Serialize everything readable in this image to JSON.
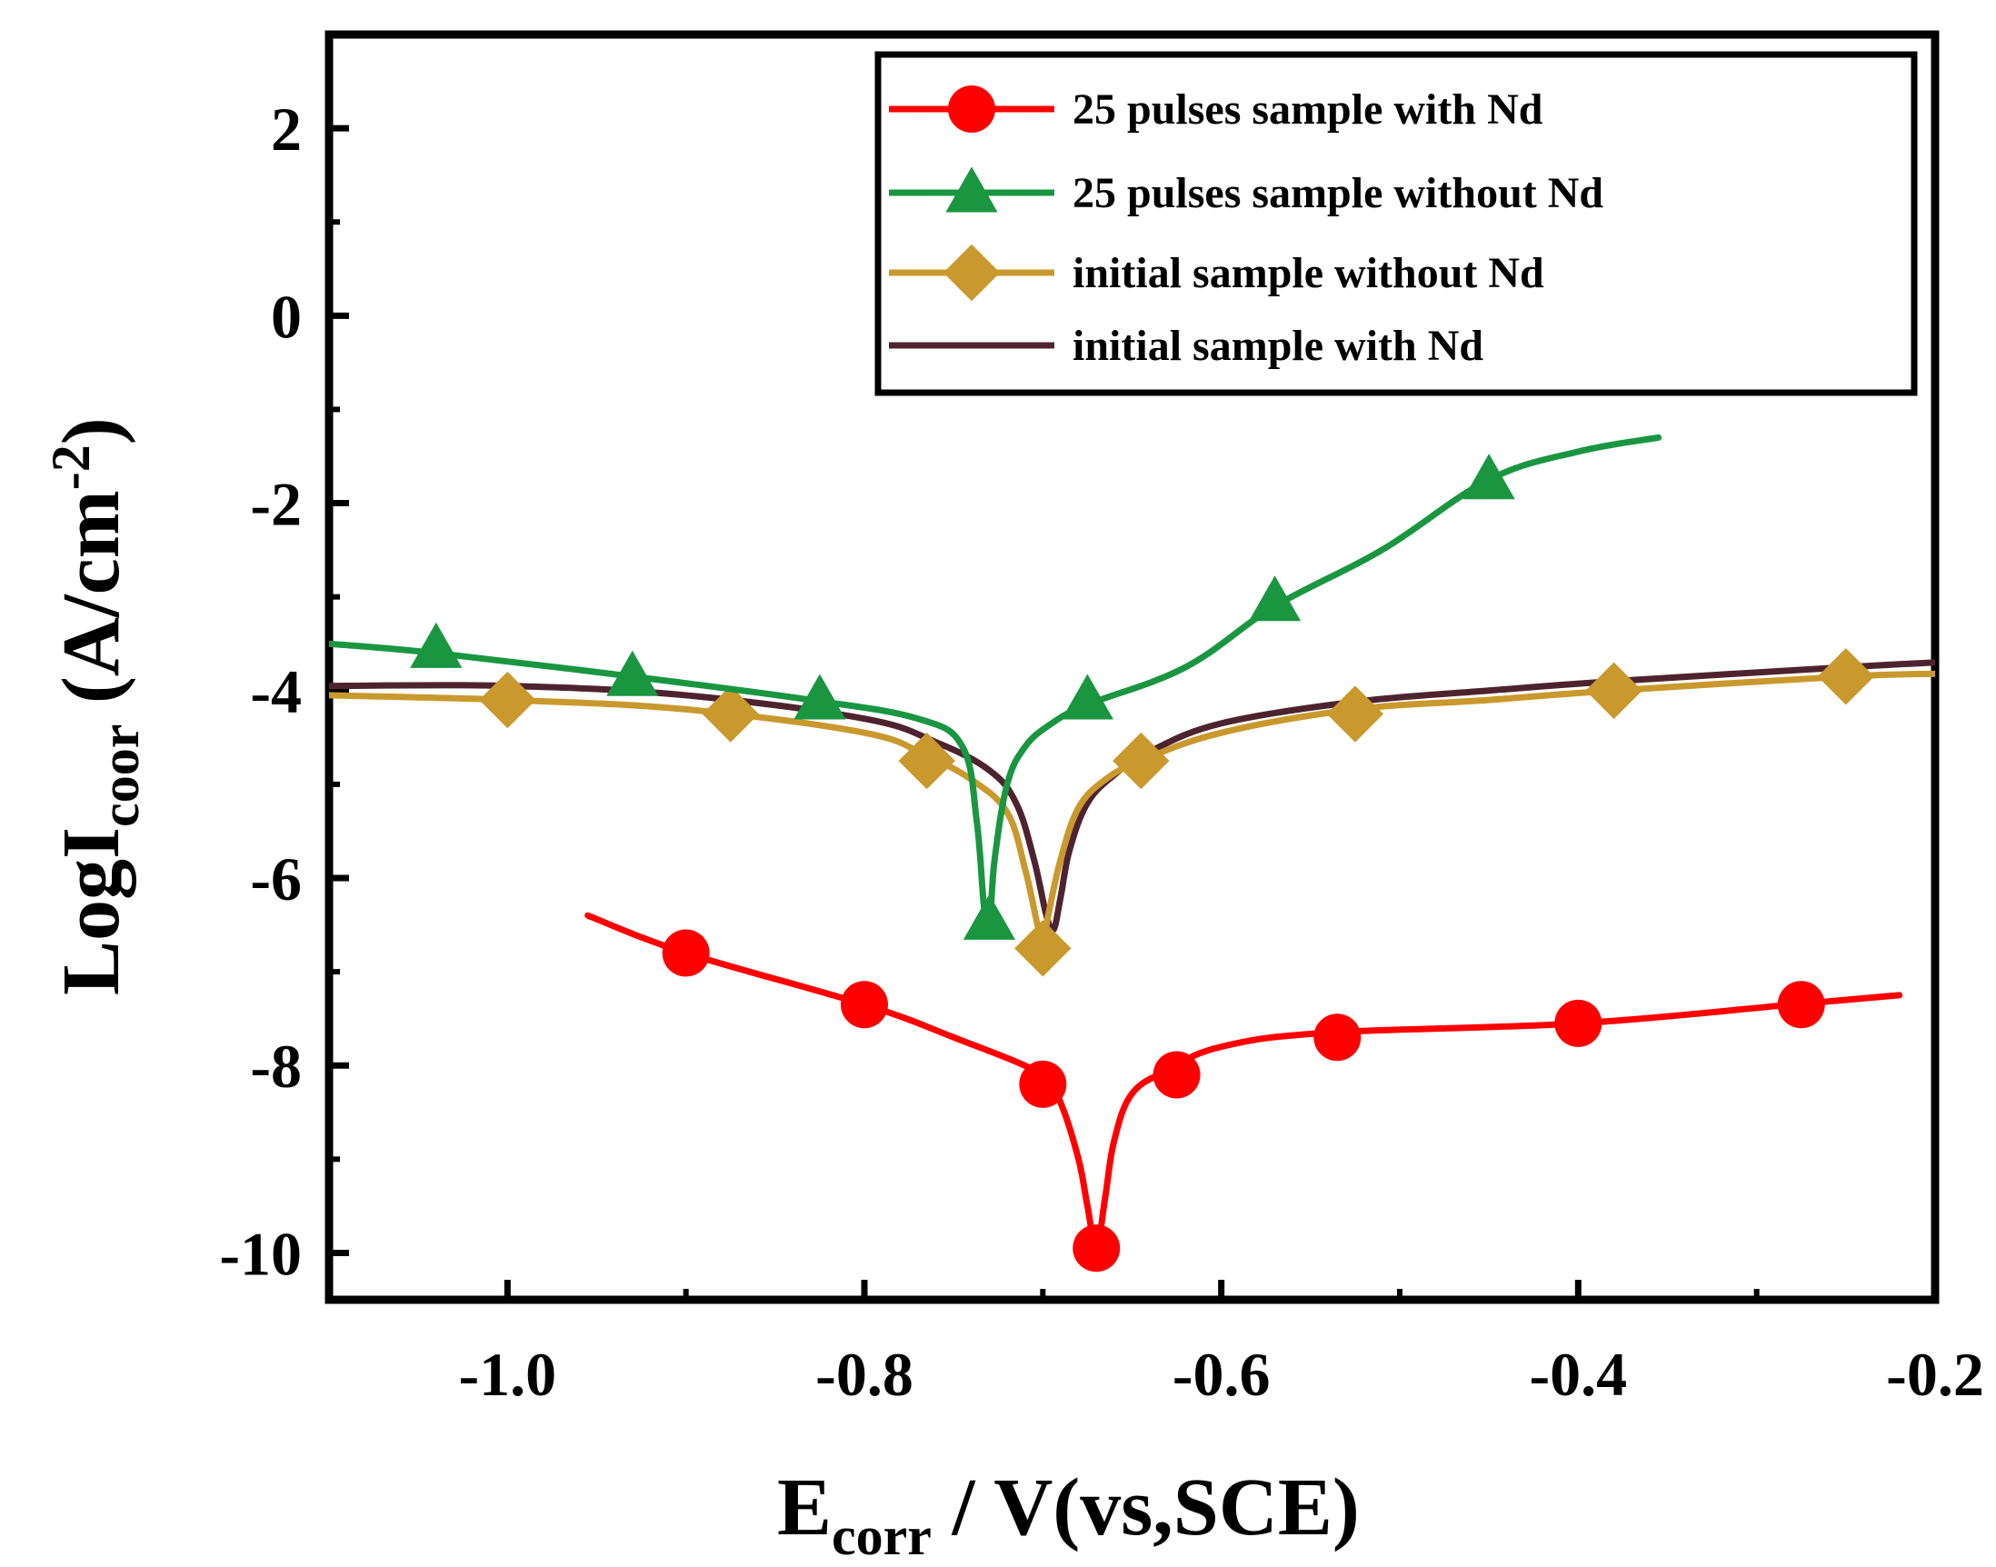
{
  "chart_data": {
    "type": "line",
    "xlabel": {
      "main": "E",
      "sub": "corr",
      "rest": " / V(vs,SCE)"
    },
    "ylabel": {
      "main": "LogI",
      "sub": "coor",
      "rest": " (A/cm",
      "sup": "-2",
      "end": ")"
    },
    "xlim": [
      -1.1,
      -0.2
    ],
    "ylim": [
      -10.5,
      3.0
    ],
    "xticks": [
      -1.0,
      -0.8,
      -0.6,
      -0.4,
      -0.2
    ],
    "xtick_labels": [
      "-1.0",
      "-0.8",
      "-0.6",
      "-0.4",
      "-0.2"
    ],
    "yticks": [
      2,
      0,
      -2,
      -4,
      -6,
      -8,
      -10
    ],
    "ytick_labels": [
      "2",
      "0",
      "-2",
      "-4",
      "-6",
      "-8",
      "-10"
    ],
    "legend_position": "top-right",
    "series": [
      {
        "name": "25 pulses sample with Nd",
        "color": "#ff0000",
        "marker": "circle",
        "x": [
          -0.955,
          -0.9,
          -0.8,
          -0.75,
          -0.7,
          -0.69,
          -0.68,
          -0.675,
          -0.67,
          -0.665,
          -0.66,
          -0.65,
          -0.63,
          -0.6,
          -0.54,
          -0.4,
          -0.28,
          -0.22
        ],
        "y": [
          -6.4,
          -6.8,
          -7.35,
          -7.7,
          -8.1,
          -8.4,
          -9.0,
          -9.5,
          -9.95,
          -9.4,
          -8.8,
          -8.3,
          -8.05,
          -7.8,
          -7.65,
          -7.55,
          -7.35,
          -7.25
        ],
        "marker_x": [
          -0.9,
          -0.8,
          -0.7,
          -0.67,
          -0.625,
          -0.535,
          -0.4,
          -0.275
        ],
        "marker_y": [
          -6.8,
          -7.35,
          -8.2,
          -9.95,
          -8.1,
          -7.7,
          -7.55,
          -7.35
        ]
      },
      {
        "name": "25 pulses sample without Nd",
        "color": "#1a9641",
        "marker": "triangle",
        "x": [
          -1.1,
          -1.04,
          -0.93,
          -0.83,
          -0.77,
          -0.745,
          -0.737,
          -0.733,
          -0.73,
          -0.727,
          -0.72,
          -0.71,
          -0.695,
          -0.675,
          -0.62,
          -0.57,
          -0.51,
          -0.45,
          -0.4,
          -0.355
        ],
        "y": [
          -3.5,
          -3.6,
          -3.85,
          -4.1,
          -4.3,
          -4.6,
          -5.4,
          -6.3,
          -6.5,
          -5.8,
          -5.0,
          -4.6,
          -4.35,
          -4.15,
          -3.75,
          -3.1,
          -2.5,
          -1.75,
          -1.45,
          -1.3
        ],
        "marker_x": [
          -1.04,
          -0.93,
          -0.825,
          -0.73,
          -0.675,
          -0.57,
          -0.45
        ],
        "marker_y": [
          -3.55,
          -3.85,
          -4.1,
          -6.45,
          -4.1,
          -3.05,
          -1.75
        ]
      },
      {
        "name": "initial sample without Nd",
        "color": "#c9992e",
        "marker": "diamond",
        "x": [
          -1.1,
          -1.0,
          -0.9,
          -0.8,
          -0.765,
          -0.74,
          -0.72,
          -0.71,
          -0.703,
          -0.7,
          -0.697,
          -0.69,
          -0.68,
          -0.665,
          -0.645,
          -0.6,
          -0.525,
          -0.45,
          -0.38,
          -0.25,
          -0.2
        ],
        "y": [
          -4.05,
          -4.1,
          -4.2,
          -4.45,
          -4.7,
          -4.95,
          -5.3,
          -5.9,
          -6.5,
          -6.7,
          -6.4,
          -5.8,
          -5.25,
          -4.95,
          -4.75,
          -4.45,
          -4.2,
          -4.1,
          -4.0,
          -3.85,
          -3.82
        ],
        "marker_x": [
          -1.0,
          -0.875,
          -0.765,
          -0.7,
          -0.645,
          -0.525,
          -0.38,
          -0.25
        ],
        "marker_y": [
          -4.1,
          -4.25,
          -4.75,
          -6.75,
          -4.75,
          -4.25,
          -4.0,
          -3.85
        ]
      },
      {
        "name": "initial sample with Nd",
        "color": "#4e2330",
        "marker": "none",
        "x": [
          -1.1,
          -1.0,
          -0.9,
          -0.8,
          -0.76,
          -0.73,
          -0.715,
          -0.705,
          -0.698,
          -0.694,
          -0.69,
          -0.685,
          -0.675,
          -0.66,
          -0.64,
          -0.6,
          -0.525,
          -0.45,
          -0.38,
          -0.25,
          -0.2
        ],
        "y": [
          -3.95,
          -3.95,
          -4.05,
          -4.3,
          -4.55,
          -4.85,
          -5.2,
          -5.8,
          -6.4,
          -6.55,
          -6.2,
          -5.7,
          -5.2,
          -4.9,
          -4.65,
          -4.35,
          -4.12,
          -4.0,
          -3.9,
          -3.75,
          -3.7
        ]
      }
    ]
  }
}
